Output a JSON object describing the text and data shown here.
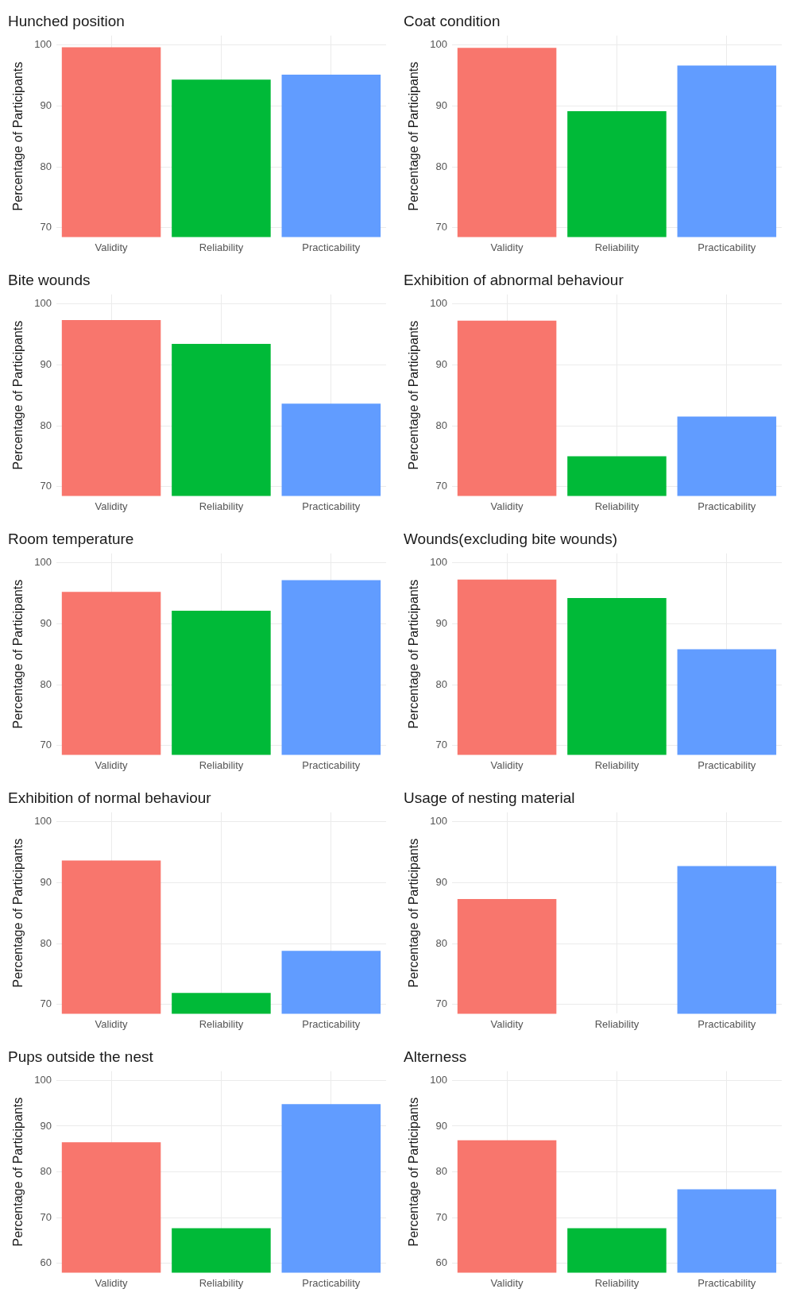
{
  "chart_data": [
    {
      "type": "bar",
      "title": "Hunched position",
      "ylabel": "Percentage of Participants",
      "categories": [
        "Validity",
        "Reliability",
        "Practicability"
      ],
      "values": [
        99.6,
        94.3,
        95.1
      ],
      "colors": [
        "#f8766d",
        "#00ba38",
        "#619cff"
      ],
      "ylim": [
        68.5,
        101.5
      ],
      "yticks": [
        70,
        80,
        90,
        100
      ],
      "grid": true
    },
    {
      "type": "bar",
      "title": "Coat condition",
      "ylabel": "Percentage of Participants",
      "categories": [
        "Validity",
        "Reliability",
        "Practicability"
      ],
      "values": [
        99.5,
        89.1,
        96.6
      ],
      "colors": [
        "#f8766d",
        "#00ba38",
        "#619cff"
      ],
      "ylim": [
        68.5,
        101.5
      ],
      "yticks": [
        70,
        80,
        90,
        100
      ],
      "grid": true
    },
    {
      "type": "bar",
      "title": "Bite wounds",
      "ylabel": "Percentage of Participants",
      "categories": [
        "Validity",
        "Reliability",
        "Practicability"
      ],
      "values": [
        97.3,
        93.4,
        83.6
      ],
      "colors": [
        "#f8766d",
        "#00ba38",
        "#619cff"
      ],
      "ylim": [
        68.5,
        101.5
      ],
      "yticks": [
        70,
        80,
        90,
        100
      ],
      "grid": true
    },
    {
      "type": "bar",
      "title": "Exhibition of abnormal behaviour",
      "ylabel": "Percentage of Participants",
      "categories": [
        "Validity",
        "Reliability",
        "Practicability"
      ],
      "values": [
        97.2,
        75.0,
        81.5
      ],
      "colors": [
        "#f8766d",
        "#00ba38",
        "#619cff"
      ],
      "ylim": [
        68.5,
        101.5
      ],
      "yticks": [
        70,
        80,
        90,
        100
      ],
      "grid": true
    },
    {
      "type": "bar",
      "title": "Room temperature",
      "ylabel": "Percentage of Participants",
      "categories": [
        "Validity",
        "Reliability",
        "Practicability"
      ],
      "values": [
        95.2,
        92.1,
        97.1
      ],
      "colors": [
        "#f8766d",
        "#00ba38",
        "#619cff"
      ],
      "ylim": [
        68.5,
        101.5
      ],
      "yticks": [
        70,
        80,
        90,
        100
      ],
      "grid": true
    },
    {
      "type": "bar",
      "title": "Wounds(excluding bite wounds)",
      "ylabel": "Percentage of Participants",
      "categories": [
        "Validity",
        "Reliability",
        "Practicability"
      ],
      "values": [
        97.2,
        94.2,
        85.8
      ],
      "colors": [
        "#f8766d",
        "#00ba38",
        "#619cff"
      ],
      "ylim": [
        68.5,
        101.5
      ],
      "yticks": [
        70,
        80,
        90,
        100
      ],
      "grid": true
    },
    {
      "type": "bar",
      "title": "Exhibition of normal behaviour",
      "ylabel": "Percentage of Participants",
      "categories": [
        "Validity",
        "Reliability",
        "Practicability"
      ],
      "values": [
        93.6,
        71.9,
        78.8
      ],
      "colors": [
        "#f8766d",
        "#00ba38",
        "#619cff"
      ],
      "ylim": [
        68.5,
        101.5
      ],
      "yticks": [
        70,
        80,
        90,
        100
      ],
      "grid": true
    },
    {
      "type": "bar",
      "title": "Usage of nesting material",
      "ylabel": "Percentage of Participants",
      "categories": [
        "Validity",
        "Reliability",
        "Practicability"
      ],
      "values": [
        87.3,
        null,
        92.7
      ],
      "colors": [
        "#f8766d",
        "#00ba38",
        "#619cff"
      ],
      "ylim": [
        68.5,
        101.5
      ],
      "yticks": [
        70,
        80,
        90,
        100
      ],
      "grid": true
    },
    {
      "type": "bar",
      "title": "Pups outside the nest",
      "ylabel": "Percentage of Participants",
      "categories": [
        "Validity",
        "Reliability",
        "Practicability"
      ],
      "values": [
        86.5,
        67.7,
        94.8
      ],
      "colors": [
        "#f8766d",
        "#00ba38",
        "#619cff"
      ],
      "ylim": [
        58,
        102
      ],
      "yticks": [
        60,
        70,
        80,
        90,
        100
      ],
      "grid": true
    },
    {
      "type": "bar",
      "title": "Alterness",
      "ylabel": "Percentage of Participants",
      "categories": [
        "Validity",
        "Reliability",
        "Practicability"
      ],
      "values": [
        86.9,
        67.7,
        76.2
      ],
      "colors": [
        "#f8766d",
        "#00ba38",
        "#619cff"
      ],
      "ylim": [
        58,
        102
      ],
      "yticks": [
        60,
        70,
        80,
        90,
        100
      ],
      "grid": true
    }
  ]
}
